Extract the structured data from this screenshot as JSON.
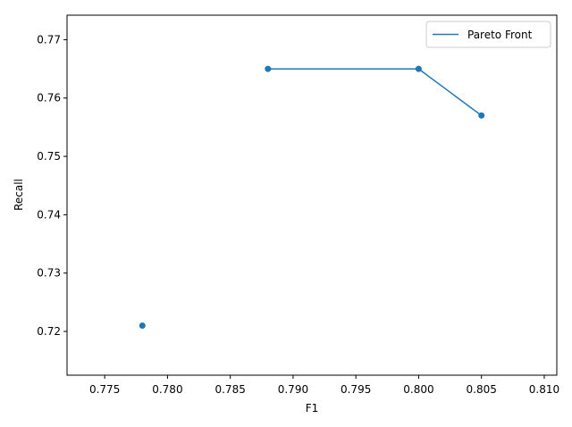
{
  "chart_data": {
    "type": "scatter",
    "xlabel": "F1",
    "ylabel": "Recall",
    "xlim": [
      0.772,
      0.811
    ],
    "ylim": [
      0.7125,
      0.7742
    ],
    "x_ticks": [
      0.775,
      0.78,
      0.785,
      0.79,
      0.795,
      0.8,
      0.805,
      0.81
    ],
    "x_tick_labels": [
      "0.775",
      "0.780",
      "0.785",
      "0.790",
      "0.795",
      "0.800",
      "0.805",
      "0.810"
    ],
    "y_ticks": [
      0.72,
      0.73,
      0.74,
      0.75,
      0.76,
      0.77
    ],
    "y_tick_labels": [
      "0.72",
      "0.73",
      "0.74",
      "0.75",
      "0.76",
      "0.77"
    ],
    "grid": false,
    "legend_position": "top-right",
    "colors": {
      "series": "#1f77b4",
      "axes": "#000000"
    },
    "series": [
      {
        "name": "",
        "kind": "scatter",
        "x": [
          0.778,
          0.788,
          0.8,
          0.805
        ],
        "y": [
          0.721,
          0.765,
          0.765,
          0.757
        ]
      },
      {
        "name": "Pareto Front",
        "kind": "line",
        "x": [
          0.788,
          0.8,
          0.805
        ],
        "y": [
          0.765,
          0.765,
          0.757
        ]
      }
    ]
  }
}
